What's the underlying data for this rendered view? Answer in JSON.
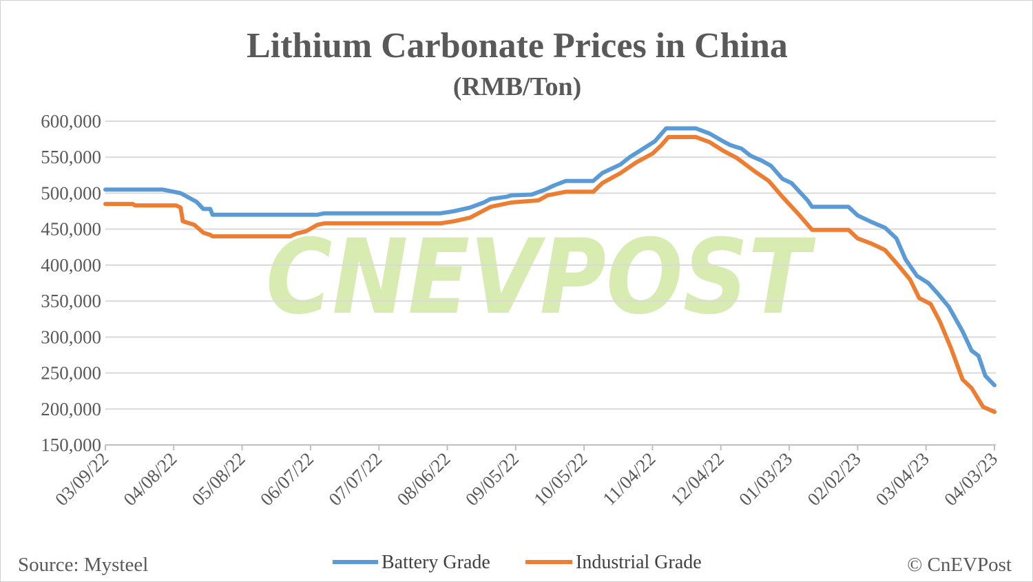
{
  "chart_data": {
    "type": "line",
    "title": "Lithium Carbonate Prices in China",
    "subtitle": "(RMB/Ton)",
    "xlabel": "",
    "ylabel": "",
    "ylim": [
      150000,
      600000
    ],
    "yticks": [
      "150,000",
      "200,000",
      "250,000",
      "300,000",
      "350,000",
      "400,000",
      "450,000",
      "500,000",
      "550,000",
      "600,000"
    ],
    "xlim": [
      "2022-03-09",
      "2023-04-03"
    ],
    "xticks": [
      "03/09/22",
      "04/08/22",
      "05/08/22",
      "06/07/22",
      "07/07/22",
      "08/06/22",
      "09/05/22",
      "10/05/22",
      "11/04/22",
      "12/04/22",
      "01/03/23",
      "02/02/23",
      "03/04/23",
      "04/03/23"
    ],
    "grid": true,
    "legend_position": "bottom",
    "series": [
      {
        "name": "Battery Grade",
        "color": "#5b9bd5",
        "points": [
          [
            "2022-03-09",
            505000
          ],
          [
            "2022-04-03",
            505000
          ],
          [
            "2022-04-11",
            500000
          ],
          [
            "2022-04-18",
            488000
          ],
          [
            "2022-04-21",
            478000
          ],
          [
            "2022-04-24",
            478000
          ],
          [
            "2022-04-25",
            470000
          ],
          [
            "2022-06-10",
            470000
          ],
          [
            "2022-06-13",
            472000
          ],
          [
            "2022-08-03",
            472000
          ],
          [
            "2022-08-09",
            475000
          ],
          [
            "2022-08-16",
            480000
          ],
          [
            "2022-08-22",
            487000
          ],
          [
            "2022-08-25",
            492000
          ],
          [
            "2022-09-01",
            495000
          ],
          [
            "2022-09-03",
            497000
          ],
          [
            "2022-09-12",
            498000
          ],
          [
            "2022-09-18",
            505000
          ],
          [
            "2022-09-22",
            511000
          ],
          [
            "2022-09-27",
            517000
          ],
          [
            "2022-10-09",
            517000
          ],
          [
            "2022-10-13",
            528000
          ],
          [
            "2022-10-21",
            540000
          ],
          [
            "2022-10-25",
            550000
          ],
          [
            "2022-10-30",
            560000
          ],
          [
            "2022-11-05",
            572000
          ],
          [
            "2022-11-10",
            590000
          ],
          [
            "2022-11-23",
            590000
          ],
          [
            "2022-11-29",
            583000
          ],
          [
            "2022-12-05",
            572000
          ],
          [
            "2022-12-08",
            567000
          ],
          [
            "2022-12-13",
            562000
          ],
          [
            "2022-12-17",
            552000
          ],
          [
            "2022-12-22",
            545000
          ],
          [
            "2022-12-26",
            538000
          ],
          [
            "2022-12-31",
            520000
          ],
          [
            "2023-01-04",
            514000
          ],
          [
            "2023-01-11",
            490000
          ],
          [
            "2023-01-13",
            481000
          ],
          [
            "2023-01-29",
            481000
          ],
          [
            "2023-02-02",
            469000
          ],
          [
            "2023-02-08",
            460000
          ],
          [
            "2023-02-14",
            452000
          ],
          [
            "2023-02-19",
            437000
          ],
          [
            "2023-02-23",
            408000
          ],
          [
            "2023-02-28",
            385000
          ],
          [
            "2023-03-05",
            375000
          ],
          [
            "2023-03-09",
            361000
          ],
          [
            "2023-03-14",
            342000
          ],
          [
            "2023-03-20",
            308000
          ],
          [
            "2023-03-24",
            281000
          ],
          [
            "2023-03-27",
            274000
          ],
          [
            "2023-03-30",
            246000
          ],
          [
            "2023-04-03",
            233000
          ]
        ]
      },
      {
        "name": "Industrial Grade",
        "color": "#ed7d31",
        "points": [
          [
            "2022-03-09",
            485000
          ],
          [
            "2022-03-21",
            485000
          ],
          [
            "2022-03-22",
            483000
          ],
          [
            "2022-04-09",
            483000
          ],
          [
            "2022-04-11",
            480000
          ],
          [
            "2022-04-12",
            461000
          ],
          [
            "2022-04-17",
            456000
          ],
          [
            "2022-04-21",
            445000
          ],
          [
            "2022-04-24",
            442000
          ],
          [
            "2022-04-25",
            440000
          ],
          [
            "2022-05-29",
            440000
          ],
          [
            "2022-06-01",
            444000
          ],
          [
            "2022-06-05",
            447000
          ],
          [
            "2022-06-10",
            456000
          ],
          [
            "2022-06-13",
            458000
          ],
          [
            "2022-08-03",
            458000
          ],
          [
            "2022-08-09",
            461000
          ],
          [
            "2022-08-16",
            466000
          ],
          [
            "2022-08-22",
            476000
          ],
          [
            "2022-08-25",
            481000
          ],
          [
            "2022-09-03",
            487000
          ],
          [
            "2022-09-15",
            490000
          ],
          [
            "2022-09-19",
            497000
          ],
          [
            "2022-09-27",
            502000
          ],
          [
            "2022-10-09",
            502000
          ],
          [
            "2022-10-13",
            514000
          ],
          [
            "2022-10-21",
            528000
          ],
          [
            "2022-10-28",
            543000
          ],
          [
            "2022-11-04",
            555000
          ],
          [
            "2022-11-08",
            567000
          ],
          [
            "2022-11-11",
            578000
          ],
          [
            "2022-11-23",
            578000
          ],
          [
            "2022-11-29",
            571000
          ],
          [
            "2022-12-05",
            559000
          ],
          [
            "2022-12-11",
            549000
          ],
          [
            "2022-12-19",
            530000
          ],
          [
            "2022-12-25",
            517000
          ],
          [
            "2022-12-31",
            495000
          ],
          [
            "2023-01-07",
            471000
          ],
          [
            "2023-01-13",
            449000
          ],
          [
            "2023-01-29",
            449000
          ],
          [
            "2023-02-02",
            437000
          ],
          [
            "2023-02-08",
            430000
          ],
          [
            "2023-02-14",
            421000
          ],
          [
            "2023-02-20",
            399000
          ],
          [
            "2023-02-25",
            380000
          ],
          [
            "2023-03-01",
            354000
          ],
          [
            "2023-03-06",
            346000
          ],
          [
            "2023-03-10",
            322000
          ],
          [
            "2023-03-15",
            284000
          ],
          [
            "2023-03-20",
            241000
          ],
          [
            "2023-03-24",
            229000
          ],
          [
            "2023-03-29",
            203000
          ],
          [
            "2023-04-03",
            196000
          ]
        ]
      }
    ]
  },
  "source": "Source: Mysteel",
  "copyright": "© CnEVPost",
  "watermark": "CNEVPOST",
  "watermark_color": "#d8ebb0"
}
